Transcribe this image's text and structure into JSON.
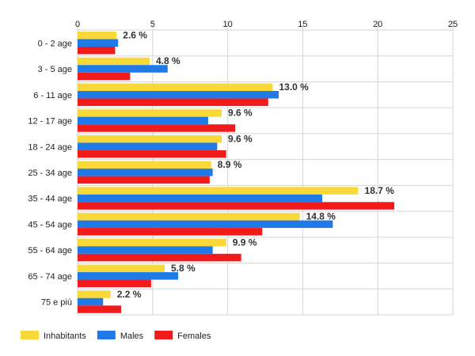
{
  "chart_data": {
    "type": "bar",
    "orientation": "horizontal",
    "categories": [
      "0 - 2 age",
      "3 - 5 age",
      "6 - 11 age",
      "12 - 17 age",
      "18 - 24 age",
      "25 - 34 age",
      "35 - 44 age",
      "45 - 54 age",
      "55 - 64 age",
      "65 - 74 age",
      "75 e più"
    ],
    "series": [
      {
        "name": "Inhabitants",
        "color": "#f9d83a",
        "values": [
          2.6,
          4.8,
          13.0,
          9.6,
          9.6,
          8.9,
          18.7,
          14.8,
          9.9,
          5.8,
          2.2
        ]
      },
      {
        "name": "Males",
        "color": "#1f7ae8",
        "values": [
          2.7,
          6.0,
          13.4,
          8.7,
          9.3,
          9.0,
          16.3,
          17.0,
          9.0,
          6.7,
          1.7
        ]
      },
      {
        "name": "Females",
        "color": "#f21b1b",
        "values": [
          2.5,
          3.5,
          12.7,
          10.5,
          9.9,
          8.8,
          21.1,
          12.3,
          10.9,
          4.9,
          2.9
        ]
      }
    ],
    "data_labels": [
      "2.6 %",
      "4.8 %",
      "13.0 %",
      "9.6 %",
      "9.6 %",
      "8.9 %",
      "18.7 %",
      "14.8 %",
      "9.9 %",
      "5.8 %",
      "2.2 %"
    ],
    "x_ticks": [
      "0",
      "5",
      "10",
      "15",
      "20",
      "25"
    ],
    "xlim": [
      0,
      25
    ],
    "grid": true,
    "legend_position": "bottom-left",
    "title": "",
    "xlabel": "",
    "ylabel": ""
  }
}
